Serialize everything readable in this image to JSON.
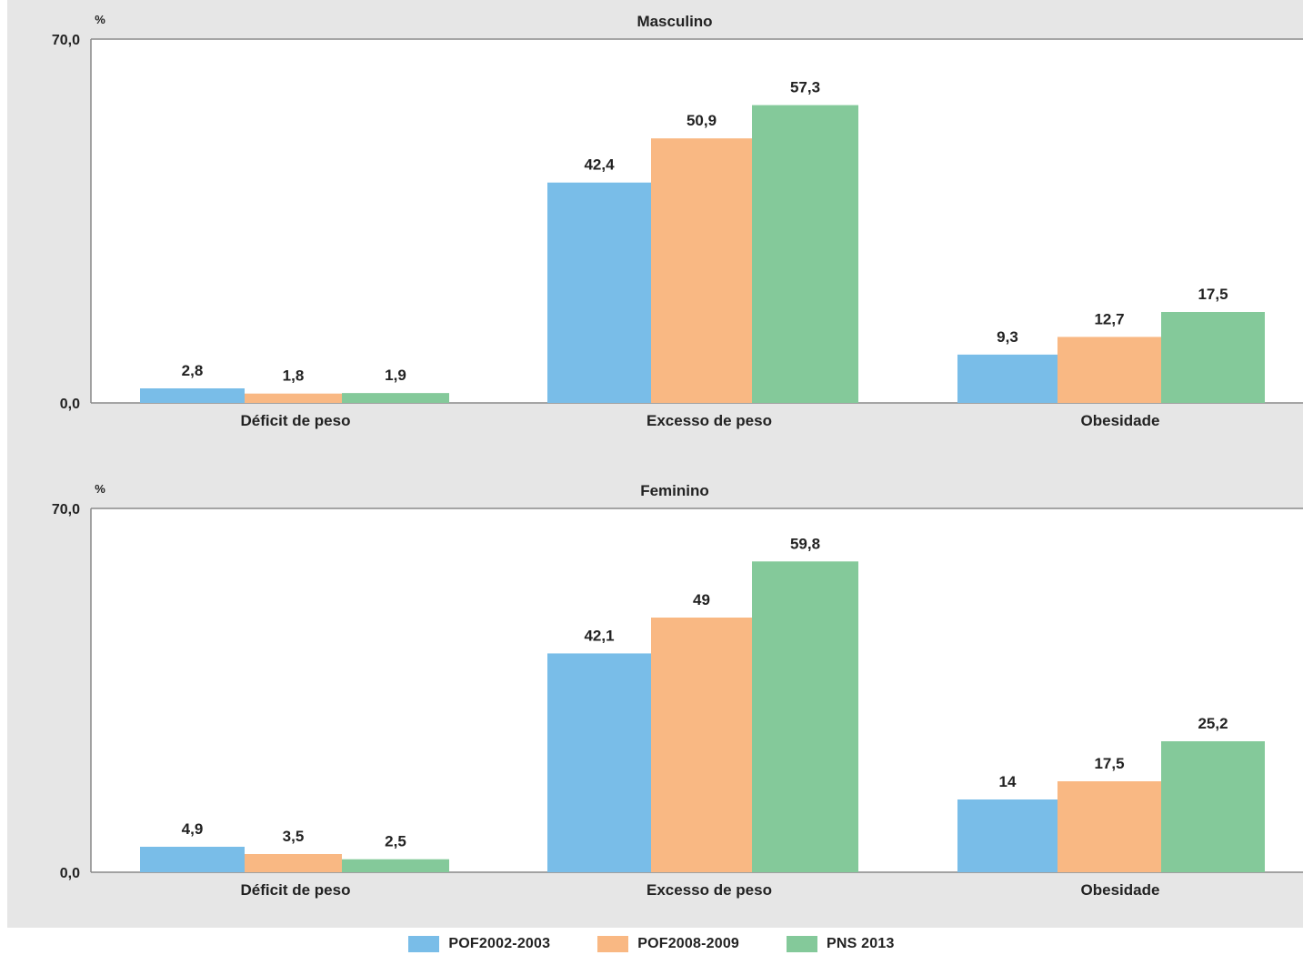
{
  "chart_data": [
    {
      "type": "bar",
      "title": "Masculino",
      "ylabel": "%",
      "ylim": [
        0,
        70
      ],
      "yticks": [
        "0,0",
        "70,0"
      ],
      "categories": [
        "Déficit de peso",
        "Excesso de peso",
        "Obesidade"
      ],
      "series": [
        {
          "name": "POF2002-2003",
          "values": [
            2.8,
            42.4,
            9.3
          ],
          "labels": [
            "2,8",
            "42,4",
            "9,3"
          ]
        },
        {
          "name": "POF2008-2009",
          "values": [
            1.8,
            50.9,
            12.7
          ],
          "labels": [
            "1,8",
            "50,9",
            "12,7"
          ]
        },
        {
          "name": "PNS 2013",
          "values": [
            1.9,
            57.3,
            17.5
          ],
          "labels": [
            "1,9",
            "57,3",
            "17,5"
          ]
        }
      ],
      "grid": false
    },
    {
      "type": "bar",
      "title": "Feminino",
      "ylabel": "%",
      "ylim": [
        0,
        70
      ],
      "yticks": [
        "0,0",
        "70,0"
      ],
      "categories": [
        "Déficit de peso",
        "Excesso de peso",
        "Obesidade"
      ],
      "series": [
        {
          "name": "POF2002-2003",
          "values": [
            4.9,
            42.1,
            14
          ],
          "labels": [
            "4,9",
            "42,1",
            "14"
          ]
        },
        {
          "name": "POF2008-2009",
          "values": [
            3.5,
            49,
            17.5
          ],
          "labels": [
            "3,5",
            "49",
            "17,5"
          ]
        },
        {
          "name": "PNS 2013",
          "values": [
            2.5,
            59.8,
            25.2
          ],
          "labels": [
            "2,5",
            "59,8",
            "25,2"
          ]
        }
      ],
      "grid": false
    }
  ],
  "legend": {
    "placement": "bottom-center",
    "items": [
      {
        "label": "POF2002-2003",
        "color": "#79bde8"
      },
      {
        "label": "POF2008-2009",
        "color": "#f9b883"
      },
      {
        "label": "PNS 2013",
        "color": "#84c99a"
      }
    ]
  },
  "colors": {
    "background": "#e6e6e6",
    "plot_area": "#ffffff",
    "axis": "#888888"
  }
}
